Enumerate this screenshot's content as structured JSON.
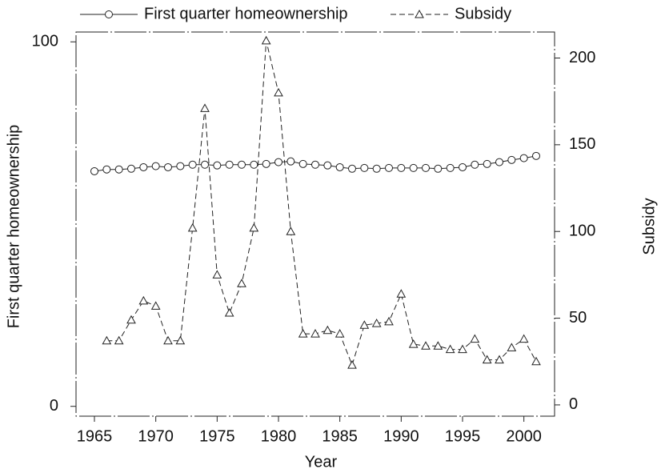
{
  "chart_data": {
    "type": "line",
    "x_label": "Year",
    "y_label": "First quarter homeownership",
    "y2_label": "Subsidy",
    "x": [
      1965,
      1966,
      1967,
      1968,
      1969,
      1970,
      1971,
      1972,
      1973,
      1974,
      1975,
      1976,
      1977,
      1978,
      1979,
      1980,
      1981,
      1982,
      1983,
      1984,
      1985,
      1986,
      1987,
      1988,
      1989,
      1990,
      1991,
      1992,
      1993,
      1994,
      1995,
      1996,
      1997,
      1998,
      1999,
      2000,
      2001
    ],
    "xlim": [
      1963.5,
      2002.5
    ],
    "xticks": [
      1965,
      1970,
      1975,
      1980,
      1985,
      1990,
      1995,
      2000
    ],
    "ylim": [
      -2.7,
      102.7
    ],
    "yticks": [
      0,
      100
    ],
    "y2lim": [
      -6.5,
      215
    ],
    "y2ticks": [
      0,
      50,
      100,
      150,
      200
    ],
    "grid": false,
    "legend": "top",
    "series": [
      {
        "name": "First quarter homeownership",
        "color": "#222222",
        "marker": "circle",
        "dash": false,
        "values": [
          64.5,
          65.0,
          65.0,
          65.2,
          65.6,
          65.9,
          65.6,
          65.9,
          66.3,
          66.3,
          66.1,
          66.3,
          66.3,
          66.3,
          66.5,
          67.0,
          67.2,
          66.5,
          66.3,
          66.1,
          65.6,
          65.2,
          65.4,
          65.2,
          65.4,
          65.4,
          65.4,
          65.4,
          65.2,
          65.4,
          65.6,
          66.3,
          66.5,
          67.0,
          67.6,
          68.1,
          68.7
        ]
      },
      {
        "name": "Subsidy",
        "color": "#222222",
        "marker": "triangle",
        "dash": true,
        "axis": "y2",
        "values": [
          null,
          37,
          37,
          49,
          60,
          57,
          37,
          37,
          102,
          171,
          75,
          53,
          70,
          102,
          210,
          180,
          100,
          41,
          41,
          43,
          41,
          23,
          46,
          47,
          48,
          64,
          35,
          34,
          34,
          32,
          32,
          38,
          26,
          26,
          33,
          38,
          25
        ]
      }
    ]
  }
}
